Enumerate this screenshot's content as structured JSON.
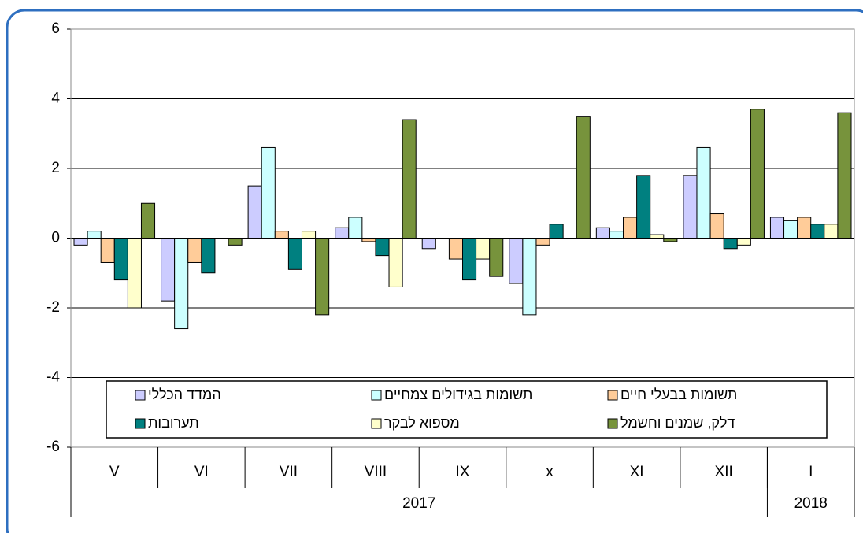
{
  "chart_data": {
    "type": "bar",
    "categories": [
      "V",
      "VI",
      "VII",
      "VIII",
      "IX",
      "x",
      "XI",
      "XII",
      "I"
    ],
    "groups": [
      {
        "label": "2017",
        "categories": 8
      },
      {
        "label": "2018",
        "categories": 1
      }
    ],
    "series": [
      {
        "name": "המדד הכללי",
        "color": "#ccccff",
        "values": [
          -0.2,
          -1.8,
          1.5,
          0.3,
          -0.3,
          -1.3,
          0.3,
          1.8,
          0.6
        ]
      },
      {
        "name": "תשומות בגידולים צמחיים",
        "color": "#ccffff",
        "values": [
          0.2,
          -2.6,
          2.6,
          0.6,
          0,
          -2.2,
          0.2,
          2.6,
          0.5
        ]
      },
      {
        "name": "תשומות בבעלי חיים",
        "color": "#ffcc99",
        "values": [
          -0.7,
          -0.7,
          0.2,
          -0.1,
          -0.6,
          -0.2,
          0.6,
          0.7,
          0.6
        ]
      },
      {
        "name": "תערובות",
        "color": "#008080",
        "values": [
          -1.2,
          -1.0,
          -0.9,
          -0.5,
          -1.2,
          0.4,
          1.8,
          -0.3,
          0.4
        ]
      },
      {
        "name": "מספוא לבקר",
        "color": "#ffffcc",
        "values": [
          -2.0,
          0,
          0.2,
          -1.4,
          -0.6,
          0,
          0.1,
          -0.2,
          0.4
        ]
      },
      {
        "name": "דלק, שמנים וחשמל",
        "color": "#77933c",
        "values": [
          1.0,
          -0.2,
          -2.2,
          3.4,
          -1.1,
          3.5,
          -0.1,
          3.7,
          3.6
        ]
      }
    ],
    "ylim": [
      -6,
      6
    ],
    "yticks": [
      -6,
      -4,
      -2,
      0,
      2,
      4,
      6
    ],
    "grid": true
  }
}
